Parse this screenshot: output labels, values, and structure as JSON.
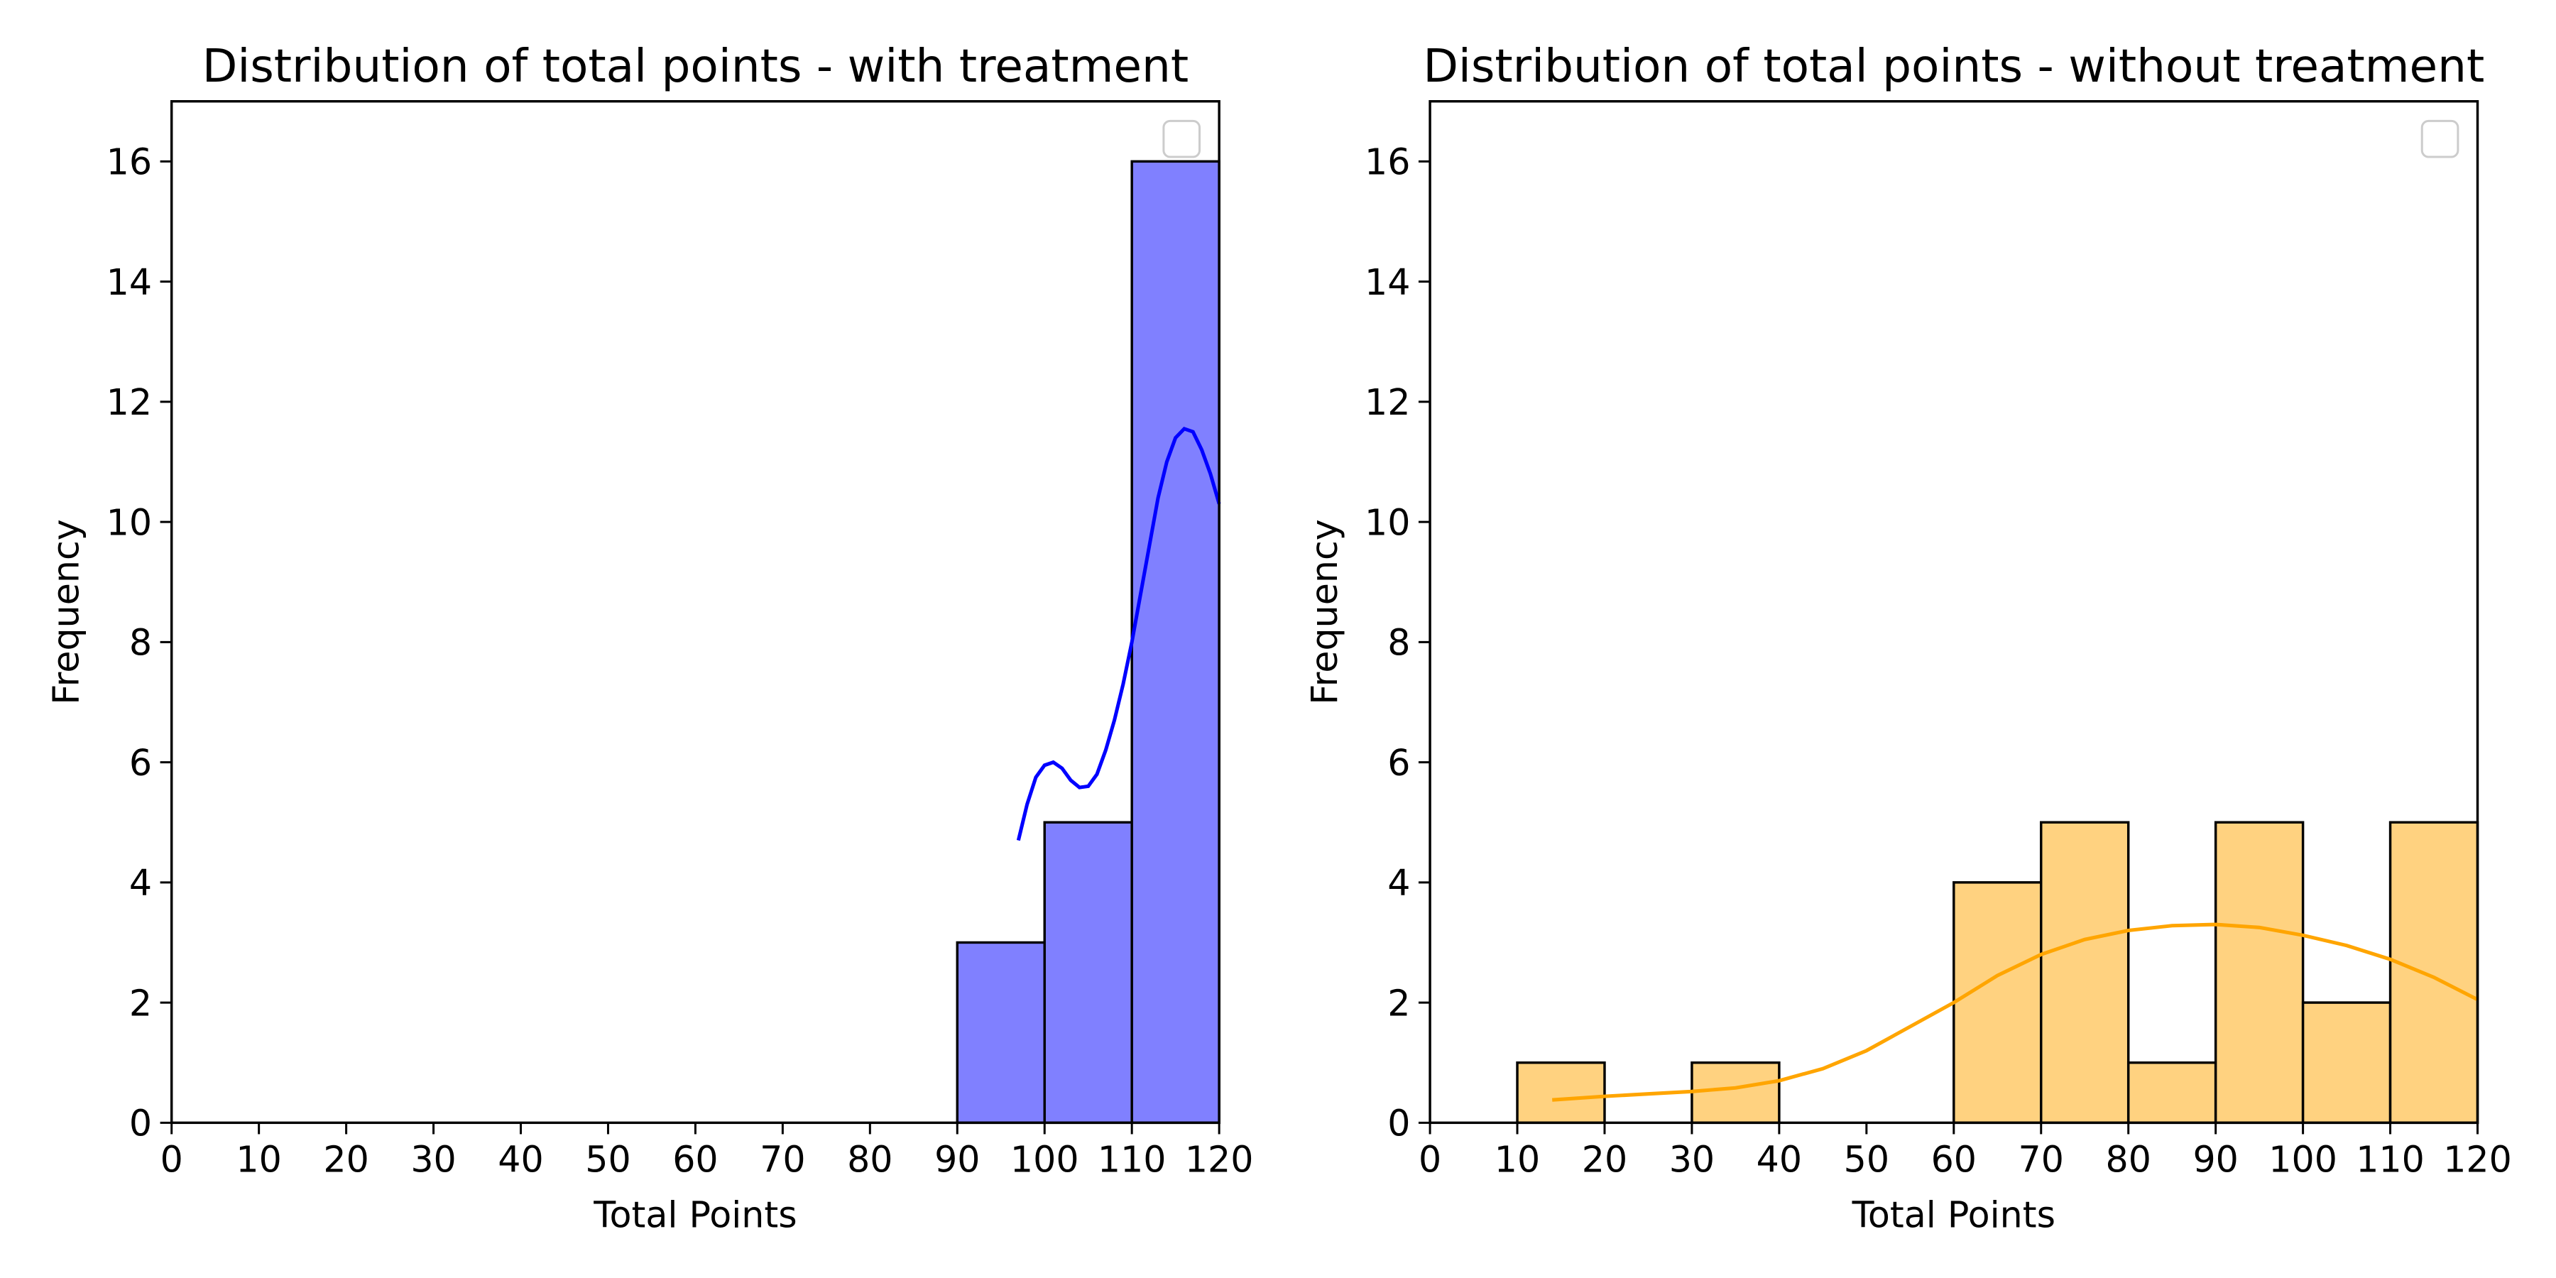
{
  "chart_data": [
    {
      "type": "histogram",
      "title": "Distribution of total points - with treatment",
      "xlabel": "Total Points",
      "ylabel": "Frequency",
      "bins": [
        90,
        100,
        110,
        120
      ],
      "values": [
        3,
        5,
        16
      ],
      "color": "#8080ff",
      "kde": {
        "x": [
          97,
          98,
          99,
          100,
          101,
          102,
          103,
          104,
          105,
          106,
          107,
          108,
          109,
          110,
          111,
          112,
          113,
          114,
          115,
          116,
          117,
          118,
          119,
          120
        ],
        "y": [
          4.7,
          5.3,
          5.75,
          5.95,
          6.0,
          5.9,
          5.7,
          5.58,
          5.6,
          5.8,
          6.2,
          6.7,
          7.3,
          8.0,
          8.8,
          9.6,
          10.4,
          11.0,
          11.4,
          11.55,
          11.5,
          11.2,
          10.8,
          10.3
        ],
        "color": "#0000ff"
      },
      "xlim": [
        0,
        120
      ],
      "xticks": [
        0,
        10,
        20,
        30,
        40,
        50,
        60,
        70,
        80,
        90,
        100,
        110,
        120
      ],
      "ylim": [
        0,
        17
      ],
      "yticks": [
        0,
        2,
        4,
        6,
        8,
        10,
        12,
        14,
        16
      ],
      "legend": "upper right"
    },
    {
      "type": "histogram",
      "title": "Distribution of total points - without treatment",
      "xlabel": "Total Points",
      "ylabel": "Frequency",
      "bins": [
        10,
        20,
        30,
        40,
        50,
        60,
        70,
        80,
        90,
        100,
        110,
        120
      ],
      "values": [
        1,
        0,
        1,
        0,
        0,
        4,
        5,
        1,
        5,
        2,
        5
      ],
      "color": "#ffd280",
      "kde": {
        "x": [
          14,
          20,
          25,
          30,
          35,
          40,
          45,
          50,
          55,
          60,
          65,
          70,
          75,
          80,
          85,
          90,
          95,
          100,
          105,
          110,
          115,
          120
        ],
        "y": [
          0.38,
          0.44,
          0.48,
          0.52,
          0.58,
          0.7,
          0.9,
          1.2,
          1.6,
          2.0,
          2.45,
          2.8,
          3.05,
          3.2,
          3.28,
          3.3,
          3.25,
          3.12,
          2.95,
          2.72,
          2.42,
          2.05
        ],
        "color": "#ffa500"
      },
      "xlim": [
        0,
        120
      ],
      "xticks": [
        0,
        10,
        20,
        30,
        40,
        50,
        60,
        70,
        80,
        90,
        100,
        110,
        120
      ],
      "ylim": [
        0,
        17
      ],
      "yticks": [
        0,
        2,
        4,
        6,
        8,
        10,
        12,
        14,
        16
      ],
      "legend": "upper right"
    }
  ]
}
